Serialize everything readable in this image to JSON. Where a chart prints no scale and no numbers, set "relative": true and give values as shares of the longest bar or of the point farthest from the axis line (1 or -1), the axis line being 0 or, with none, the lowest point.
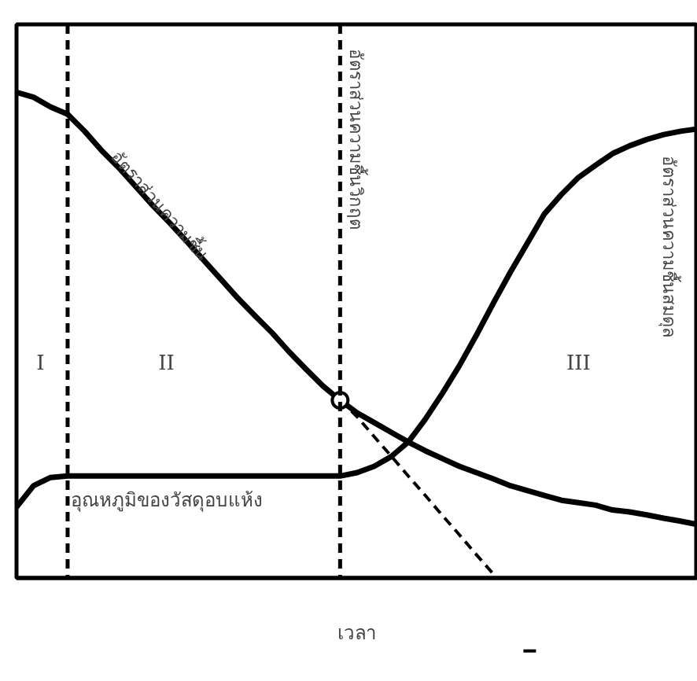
{
  "chart_data": {
    "type": "line",
    "relative": true,
    "xlabel": "เวลา",
    "categories": [
      null,
      null,
      null,
      null,
      null,
      null,
      null,
      null,
      null,
      null,
      null,
      null,
      null,
      null,
      null,
      null,
      null,
      null,
      null,
      null,
      null,
      null,
      null,
      null,
      null,
      null,
      null,
      null,
      null,
      null,
      null,
      null,
      null,
      null,
      null,
      null,
      null,
      null,
      null,
      null,
      null
    ],
    "series": [
      {
        "name": "อัตราส่วนความชื้น",
        "color": "#000000",
        "values": [
          1.0,
          0.99,
          0.97,
          0.955,
          0.92,
          0.88,
          0.845,
          0.806,
          0.767,
          0.731,
          0.693,
          0.654,
          0.615,
          0.576,
          0.54,
          0.505,
          0.466,
          0.43,
          0.395,
          0.366,
          0.34,
          0.32,
          0.3,
          0.28,
          0.262,
          0.246,
          0.23,
          0.217,
          0.204,
          0.19,
          0.18,
          0.17,
          0.16,
          0.155,
          0.15,
          0.14,
          0.136,
          0.13,
          0.123,
          0.117,
          0.11
        ]
      },
      {
        "name": "อุณหภูมิของวัสดุอบแห้ง",
        "color": "#000000",
        "values": [
          0.146,
          0.19,
          0.207,
          0.21,
          0.21,
          0.21,
          0.21,
          0.21,
          0.21,
          0.21,
          0.21,
          0.21,
          0.21,
          0.21,
          0.21,
          0.21,
          0.21,
          0.21,
          0.21,
          0.21,
          0.217,
          0.23,
          0.25,
          0.28,
          0.327,
          0.38,
          0.437,
          0.5,
          0.566,
          0.63,
          0.69,
          0.75,
          0.79,
          0.825,
          0.85,
          0.874,
          0.89,
          0.903,
          0.913,
          0.92,
          0.925
        ]
      },
      {
        "color": "#000000",
        "line_style": "dashed",
        "values": [
          null,
          null,
          null,
          null,
          null,
          null,
          null,
          null,
          null,
          null,
          null,
          null,
          null,
          null,
          null,
          null,
          null,
          null,
          null,
          0.366,
          0.332,
          0.291,
          0.251,
          0.21,
          0.17,
          0.129,
          0.089,
          0.048,
          0.008,
          null,
          null,
          null,
          null,
          null,
          null,
          null,
          null,
          null,
          null,
          null,
          null
        ]
      }
    ],
    "annotations": [
      "อัตราส่วนความชื้นวิกฤต",
      "อัตราส่วนความชื้นสมดุล",
      "I",
      "II",
      "III"
    ],
    "line_style": "solid",
    "marker": "none"
  }
}
